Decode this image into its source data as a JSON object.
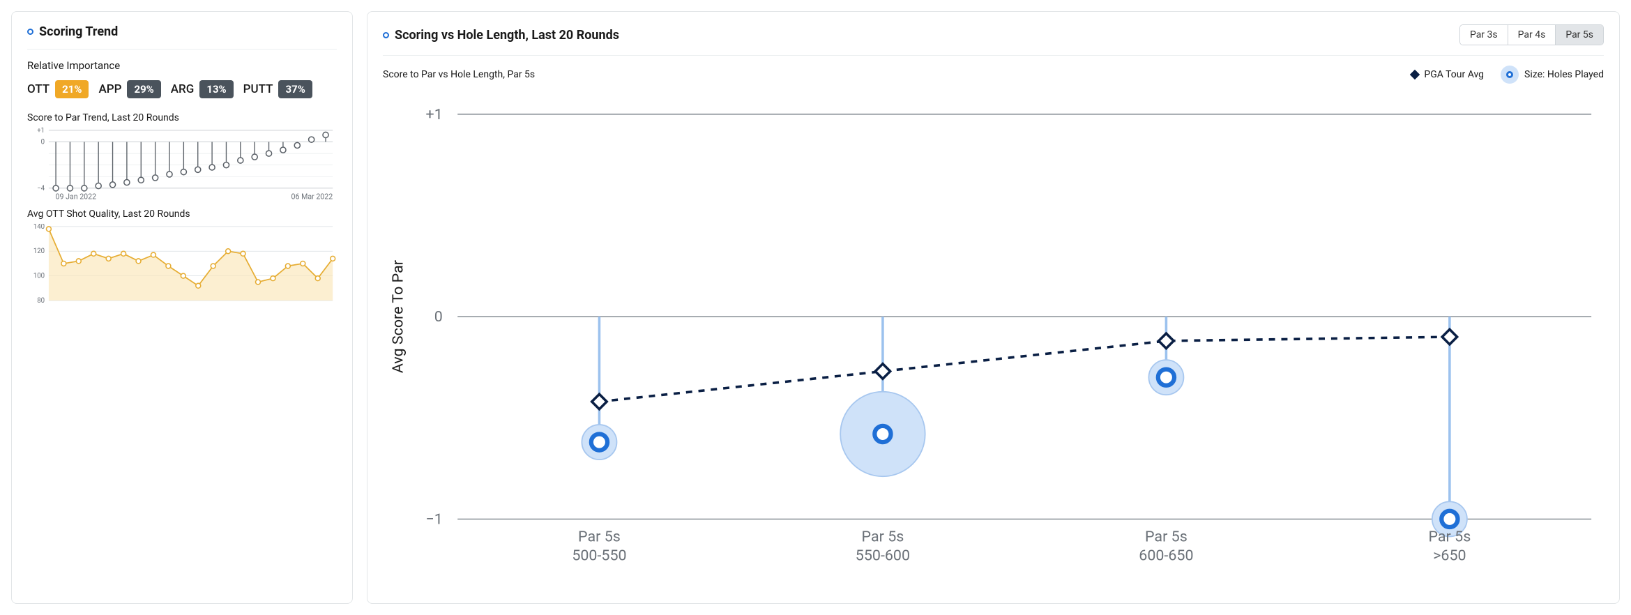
{
  "left": {
    "title": "Scoring Trend",
    "relative_importance": {
      "label": "Relative Importance",
      "items": [
        {
          "label": "OTT",
          "value": "21%",
          "bg": "#f0a826"
        },
        {
          "label": "APP",
          "value": "29%",
          "bg": "#4a535c"
        },
        {
          "label": "ARG",
          "value": "13%",
          "bg": "#4a535c"
        },
        {
          "label": "PUTT",
          "value": "37%",
          "bg": "#4a535c"
        }
      ]
    },
    "score_trend": {
      "title": "Score to Par Trend, Last 20 Rounds",
      "ylim": [
        -4,
        1
      ],
      "yticks": [
        1,
        0,
        -4
      ],
      "ytick_labels": [
        "+1",
        "0",
        "−4"
      ],
      "values": [
        -4,
        -4,
        -4,
        -3.8,
        -3.7,
        -3.5,
        -3.3,
        -3.1,
        -2.8,
        -2.6,
        -2.4,
        -2.2,
        -2.0,
        -1.6,
        -1.3,
        -1.0,
        -0.7,
        -0.3,
        0.2,
        0.6
      ],
      "marker_stroke": "#5b6168",
      "marker_fill": "#ffffff",
      "grid_color": "#b9bfc5",
      "start_label": "09 Jan 2022",
      "end_label": "06 Mar 2022"
    },
    "ott_quality": {
      "title": "Avg OTT Shot Quality, Last 20 Rounds",
      "ylim": [
        80,
        140
      ],
      "yticks": [
        140,
        120,
        100,
        80
      ],
      "values": [
        138,
        110,
        112,
        118,
        114,
        118,
        112,
        117,
        108,
        100,
        92,
        108,
        120,
        118,
        95,
        98,
        108,
        110,
        98,
        114
      ],
      "line_color": "#e6ad33",
      "fill_color": "#fbe7b8",
      "grid_color": "#d8dde2"
    }
  },
  "right": {
    "title": "Scoring vs Hole Length, Last 20 Rounds",
    "tabs": [
      "Par 3s",
      "Par 4s",
      "Par 5s"
    ],
    "active_tab": 2,
    "subtitle": "Score to Par vs Hole Length, Par 5s",
    "legend": {
      "pga": "PGA Tour Avg",
      "size": "Size: Holes Played"
    },
    "chart": {
      "ylabel": "Avg Score To Par",
      "ylim": [
        -1,
        1
      ],
      "yticks": [
        1,
        0,
        -1
      ],
      "ytick_labels": [
        "+1",
        "0",
        "−1"
      ],
      "categories": [
        "Par 5s\n500-550",
        "Par 5s\n550-600",
        "Par 5s\n600-650",
        "Par 5s\n>650"
      ],
      "pga": [
        -0.42,
        -0.27,
        -0.12,
        -0.1
      ],
      "player": [
        -0.62,
        -0.58,
        -0.3,
        -1.0
      ],
      "bubble_radius": [
        14,
        34,
        14,
        14
      ],
      "colors": {
        "grid": "#7d858c",
        "pga_stroke": "#0a1f44",
        "bubble_fill": "#cfe2f9",
        "bubble_stroke": "#a7c7ef",
        "player_stroke": "#1f6fd6",
        "stem": "#9cc2ee"
      }
    }
  }
}
